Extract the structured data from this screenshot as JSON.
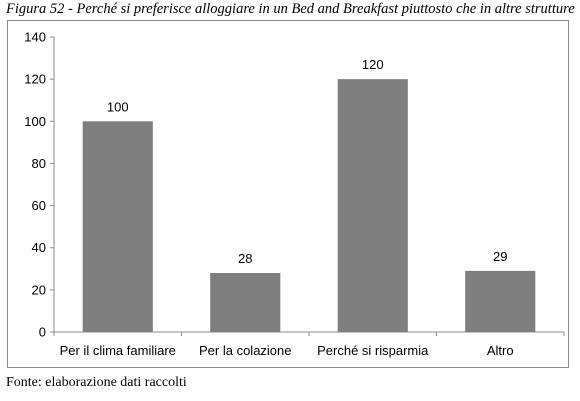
{
  "caption": "Figura 52 - Perché si preferisce alloggiare in un Bed and Breakfast piuttosto che in altre strutture",
  "source": "Fonte: elaborazione dati raccolti",
  "chart_data": {
    "type": "bar",
    "categories": [
      "Per il clima familiare",
      "Per la colazione",
      "Perché si risparmia",
      "Altro"
    ],
    "values": [
      100,
      28,
      120,
      29
    ],
    "data_labels": [
      "100",
      "28",
      "120",
      "29"
    ],
    "y_ticks": [
      "0",
      "20",
      "40",
      "60",
      "80",
      "100",
      "120",
      "140"
    ],
    "ylim": [
      0,
      140
    ],
    "grid": false,
    "legend": "none",
    "bar_color": "#7f7f7f",
    "axis_color": "#8c8c8c"
  }
}
